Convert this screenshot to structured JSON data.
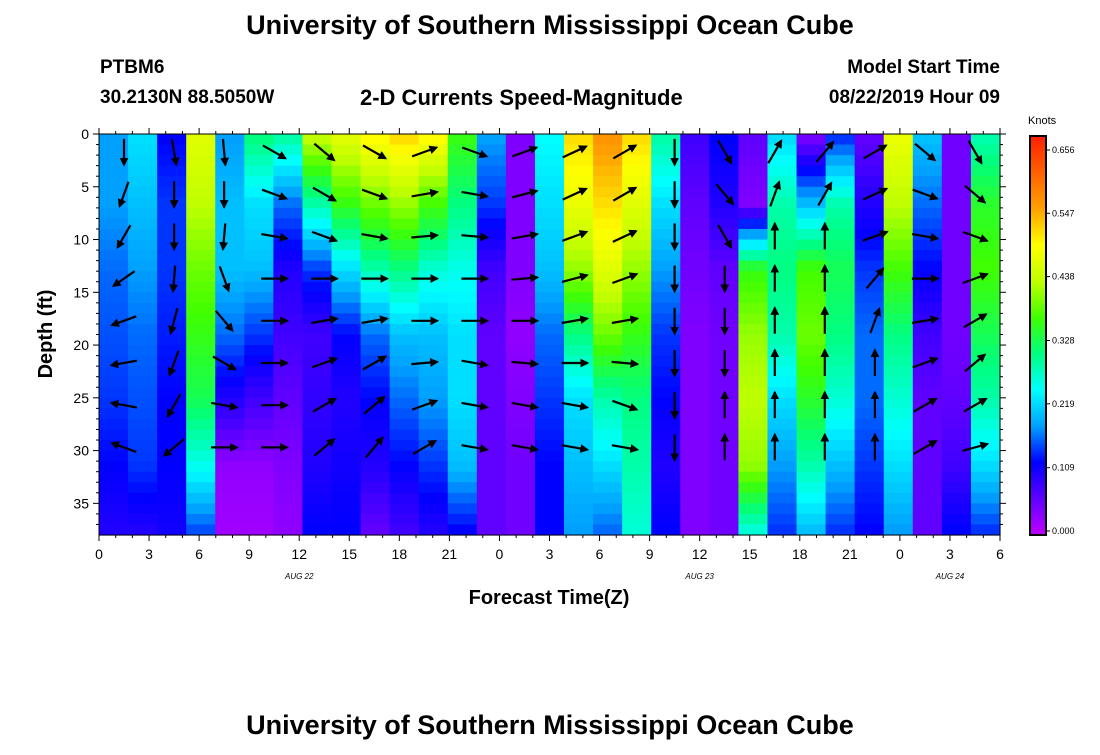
{
  "titles": {
    "top": "University of Southern Mississippi Ocean Cube",
    "bottom": "University of Southern Mississippi Ocean Cube"
  },
  "header": {
    "station": "PTBM6",
    "coords": "30.2130N 88.5050W",
    "subtitle": "2-D Currents Speed-Magnitude",
    "model_label": "Model Start Time",
    "model_time": "08/22/2019 Hour 09"
  },
  "chart_data": {
    "type": "heatmap",
    "title": "2-D Currents Speed-Magnitude",
    "xlabel": "Forecast Time(Z)",
    "ylabel": "Depth (ft)",
    "x_ticks": [
      "0",
      "3",
      "6",
      "9",
      "12",
      "15",
      "18",
      "21",
      "0",
      "3",
      "6",
      "9",
      "12",
      "15",
      "18",
      "21",
      "0",
      "3",
      "6"
    ],
    "x_hours": [
      0,
      54
    ],
    "date_labels": [
      {
        "text": "AUG 22",
        "hour": 12
      },
      {
        "text": "AUG 23",
        "hour": 36
      },
      {
        "text": "AUG 24",
        "hour": 51
      }
    ],
    "y_ticks": [
      0,
      5,
      10,
      15,
      20,
      25,
      30,
      35
    ],
    "ylim": [
      0,
      38
    ],
    "y_inverted": true,
    "colorbar": {
      "unit": "Knots",
      "ticks": [
        "0.656",
        "0.547",
        "0.438",
        "0.328",
        "0.219",
        "0.109",
        "0.000"
      ],
      "range": [
        0,
        0.66
      ]
    },
    "colors": {
      "scale": [
        "#c000ff",
        "#6000ff",
        "#0000ff",
        "#00a0ff",
        "#00ffff",
        "#00ff80",
        "#40ff00",
        "#c0ff00",
        "#ffff00",
        "#ffa000",
        "#ff6000",
        "#ff2000"
      ]
    },
    "column_speeds": [
      [
        0.18,
        0.18,
        0.16,
        0.15,
        0.14,
        0.12,
        0.1
      ],
      [
        0.22,
        0.2,
        0.18,
        0.16,
        0.15,
        0.14,
        0.1
      ],
      [
        0.12,
        0.14,
        0.14,
        0.13,
        0.12,
        0.12,
        0.11
      ],
      [
        0.45,
        0.42,
        0.38,
        0.35,
        0.32,
        0.25,
        0.15
      ],
      [
        0.18,
        0.2,
        0.2,
        0.16,
        0.1,
        0.03,
        0.02
      ],
      [
        0.3,
        0.22,
        0.2,
        0.14,
        0.08,
        0.03,
        0.02
      ],
      [
        0.28,
        0.16,
        0.1,
        0.08,
        0.06,
        0.04,
        0.03
      ],
      [
        0.42,
        0.28,
        0.14,
        0.08,
        0.09,
        0.1,
        0.12
      ],
      [
        0.45,
        0.35,
        0.22,
        0.12,
        0.1,
        0.11,
        0.12
      ],
      [
        0.48,
        0.38,
        0.28,
        0.16,
        0.12,
        0.1,
        0.06
      ],
      [
        0.5,
        0.4,
        0.3,
        0.2,
        0.16,
        0.12,
        0.08
      ],
      [
        0.48,
        0.36,
        0.26,
        0.2,
        0.18,
        0.14,
        0.1
      ],
      [
        0.35,
        0.3,
        0.25,
        0.22,
        0.22,
        0.2,
        0.12
      ],
      [
        0.18,
        0.14,
        0.08,
        0.06,
        0.06,
        0.06,
        0.06
      ],
      [
        0.04,
        0.04,
        0.04,
        0.03,
        0.04,
        0.05,
        0.05
      ],
      [
        0.24,
        0.22,
        0.2,
        0.16,
        0.14,
        0.12,
        0.12
      ],
      [
        0.5,
        0.46,
        0.4,
        0.3,
        0.22,
        0.2,
        0.18
      ],
      [
        0.55,
        0.5,
        0.45,
        0.38,
        0.28,
        0.22,
        0.16
      ],
      [
        0.5,
        0.45,
        0.4,
        0.35,
        0.3,
        0.28,
        0.26
      ],
      [
        0.28,
        0.22,
        0.18,
        0.14,
        0.12,
        0.1,
        0.12
      ],
      [
        0.08,
        0.06,
        0.05,
        0.04,
        0.04,
        0.04,
        0.04
      ],
      [
        0.12,
        0.1,
        0.06,
        0.05,
        0.05,
        0.05,
        0.05
      ],
      [
        0.06,
        0.04,
        0.35,
        0.4,
        0.42,
        0.4,
        0.26
      ],
      [
        0.22,
        0.28,
        0.3,
        0.28,
        0.22,
        0.18,
        0.14
      ],
      [
        0.05,
        0.2,
        0.36,
        0.38,
        0.34,
        0.28,
        0.2
      ],
      [
        0.14,
        0.28,
        0.32,
        0.3,
        0.26,
        0.2,
        0.14
      ],
      [
        0.06,
        0.1,
        0.14,
        0.16,
        0.16,
        0.14,
        0.12
      ],
      [
        0.46,
        0.42,
        0.36,
        0.3,
        0.26,
        0.22,
        0.18
      ],
      [
        0.2,
        0.16,
        0.12,
        0.08,
        0.06,
        0.06,
        0.06
      ],
      [
        0.05,
        0.05,
        0.05,
        0.05,
        0.06,
        0.08,
        0.12
      ],
      [
        0.28,
        0.34,
        0.36,
        0.32,
        0.28,
        0.22,
        0.14
      ]
    ],
    "arrow_columns": [
      {
        "hour": 1.5,
        "dirs": [
          180,
          200,
          210,
          235,
          250,
          260,
          280,
          290
        ]
      },
      {
        "hour": 4.5,
        "dirs": [
          170,
          180,
          180,
          185,
          195,
          200,
          210,
          230
        ]
      },
      {
        "hour": 7.5,
        "dirs": [
          175,
          180,
          185,
          160,
          140,
          120,
          100,
          90
        ]
      },
      {
        "hour": 10.5,
        "dirs": [
          120,
          110,
          100,
          90,
          90,
          90,
          90,
          90
        ]
      },
      {
        "hour": 13.5,
        "dirs": [
          130,
          120,
          110,
          90,
          80,
          70,
          60,
          50
        ]
      },
      {
        "hour": 16.5,
        "dirs": [
          120,
          110,
          100,
          90,
          80,
          60,
          50,
          40
        ]
      },
      {
        "hour": 19.5,
        "dirs": [
          70,
          80,
          85,
          90,
          90,
          85,
          70,
          60
        ]
      },
      {
        "hour": 22.5,
        "dirs": [
          110,
          100,
          95,
          90,
          90,
          100,
          100,
          100
        ]
      },
      {
        "hour": 25.5,
        "dirs": [
          70,
          75,
          80,
          85,
          90,
          95,
          100,
          100
        ]
      },
      {
        "hour": 28.5,
        "dirs": [
          65,
          65,
          70,
          75,
          80,
          90,
          100,
          100
        ]
      },
      {
        "hour": 31.5,
        "dirs": [
          60,
          60,
          65,
          70,
          80,
          95,
          110,
          100
        ]
      },
      {
        "hour": 34.5,
        "dirs": [
          180,
          180,
          180,
          180,
          180,
          180,
          180,
          180
        ]
      },
      {
        "hour": 37.5,
        "dirs": [
          150,
          140,
          150,
          180,
          180,
          180,
          0,
          0
        ]
      },
      {
        "hour": 40.5,
        "dirs": [
          30,
          20,
          0,
          0,
          0,
          0,
          0,
          0
        ]
      },
      {
        "hour": 43.5,
        "dirs": [
          40,
          30,
          0,
          0,
          0,
          0,
          0,
          0
        ]
      },
      {
        "hour": 46.5,
        "dirs": [
          60,
          65,
          70,
          40,
          20,
          0,
          0,
          0
        ]
      },
      {
        "hour": 49.5,
        "dirs": [
          130,
          110,
          100,
          90,
          80,
          70,
          60,
          60
        ]
      },
      {
        "hour": 52.5,
        "dirs": [
          150,
          130,
          110,
          70,
          60,
          50,
          60,
          75
        ]
      }
    ]
  }
}
